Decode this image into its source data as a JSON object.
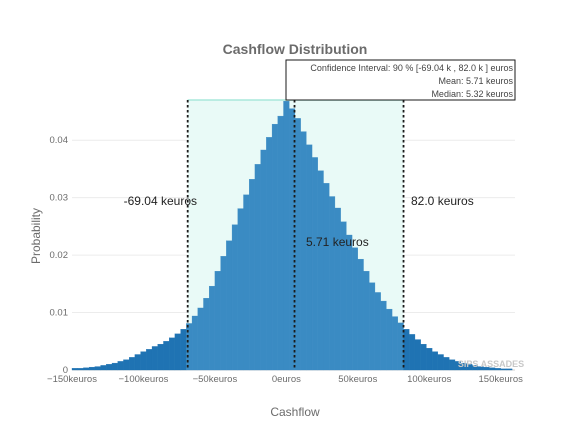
{
  "chart_data": {
    "type": "bar",
    "title": "Cashflow Distribution",
    "xlabel": "Cashflow",
    "ylabel": "Probability",
    "xlim": [
      -150,
      160
    ],
    "ylim": [
      0,
      0.047
    ],
    "x_ticks": [
      {
        "value": -150,
        "label": "−150keuros"
      },
      {
        "value": -100,
        "label": "−100keuros"
      },
      {
        "value": -50,
        "label": "−50keuros"
      },
      {
        "value": 0,
        "label": "0euros"
      },
      {
        "value": 50,
        "label": "50keuros"
      },
      {
        "value": 100,
        "label": "100keuros"
      },
      {
        "value": 150,
        "label": "150keuros"
      }
    ],
    "y_ticks": [
      {
        "value": 0,
        "label": "0"
      },
      {
        "value": 0.01,
        "label": "0.01"
      },
      {
        "value": 0.02,
        "label": "0.02"
      },
      {
        "value": 0.03,
        "label": "0.03"
      },
      {
        "value": 0.04,
        "label": "0.04"
      }
    ],
    "grid": true,
    "bin_width": 4,
    "bins": [
      {
        "x0": -150,
        "y": 0.0003
      },
      {
        "x0": -146,
        "y": 0.0003
      },
      {
        "x0": -142,
        "y": 0.0004
      },
      {
        "x0": -138,
        "y": 0.0005
      },
      {
        "x0": -134,
        "y": 0.0006
      },
      {
        "x0": -130,
        "y": 0.0008
      },
      {
        "x0": -126,
        "y": 0.001
      },
      {
        "x0": -122,
        "y": 0.0012
      },
      {
        "x0": -118,
        "y": 0.0015
      },
      {
        "x0": -114,
        "y": 0.0018
      },
      {
        "x0": -110,
        "y": 0.0022
      },
      {
        "x0": -106,
        "y": 0.0027
      },
      {
        "x0": -102,
        "y": 0.0032
      },
      {
        "x0": -98,
        "y": 0.0036
      },
      {
        "x0": -94,
        "y": 0.0041
      },
      {
        "x0": -90,
        "y": 0.0045
      },
      {
        "x0": -86,
        "y": 0.005
      },
      {
        "x0": -82,
        "y": 0.0056
      },
      {
        "x0": -78,
        "y": 0.0063
      },
      {
        "x0": -74,
        "y": 0.0071
      },
      {
        "x0": -70,
        "y": 0.0081
      },
      {
        "x0": -66,
        "y": 0.0094
      },
      {
        "x0": -62,
        "y": 0.0108
      },
      {
        "x0": -58,
        "y": 0.0125
      },
      {
        "x0": -54,
        "y": 0.0146
      },
      {
        "x0": -50,
        "y": 0.0172
      },
      {
        "x0": -46,
        "y": 0.0198
      },
      {
        "x0": -42,
        "y": 0.0225
      },
      {
        "x0": -38,
        "y": 0.0253
      },
      {
        "x0": -34,
        "y": 0.0281
      },
      {
        "x0": -30,
        "y": 0.0305
      },
      {
        "x0": -26,
        "y": 0.0332
      },
      {
        "x0": -22,
        "y": 0.0358
      },
      {
        "x0": -18,
        "y": 0.0383
      },
      {
        "x0": -14,
        "y": 0.0405
      },
      {
        "x0": -10,
        "y": 0.0428
      },
      {
        "x0": -6,
        "y": 0.0442
      },
      {
        "x0": -2,
        "y": 0.0468
      },
      {
        "x0": 2,
        "y": 0.0455
      },
      {
        "x0": 6,
        "y": 0.0438
      },
      {
        "x0": 10,
        "y": 0.0415
      },
      {
        "x0": 14,
        "y": 0.0392
      },
      {
        "x0": 18,
        "y": 0.037
      },
      {
        "x0": 22,
        "y": 0.0347
      },
      {
        "x0": 26,
        "y": 0.0325
      },
      {
        "x0": 30,
        "y": 0.0302
      },
      {
        "x0": 34,
        "y": 0.0282
      },
      {
        "x0": 38,
        "y": 0.0258
      },
      {
        "x0": 42,
        "y": 0.0235
      },
      {
        "x0": 46,
        "y": 0.0213
      },
      {
        "x0": 50,
        "y": 0.0193
      },
      {
        "x0": 54,
        "y": 0.0172
      },
      {
        "x0": 58,
        "y": 0.0152
      },
      {
        "x0": 62,
        "y": 0.0135
      },
      {
        "x0": 66,
        "y": 0.012
      },
      {
        "x0": 70,
        "y": 0.0106
      },
      {
        "x0": 74,
        "y": 0.0093
      },
      {
        "x0": 78,
        "y": 0.0082
      },
      {
        "x0": 82,
        "y": 0.0071
      },
      {
        "x0": 86,
        "y": 0.0062
      },
      {
        "x0": 90,
        "y": 0.0053
      },
      {
        "x0": 94,
        "y": 0.0045
      },
      {
        "x0": 98,
        "y": 0.0038
      },
      {
        "x0": 102,
        "y": 0.0032
      },
      {
        "x0": 106,
        "y": 0.0027
      },
      {
        "x0": 110,
        "y": 0.0022
      },
      {
        "x0": 114,
        "y": 0.0018
      },
      {
        "x0": 118,
        "y": 0.0015
      },
      {
        "x0": 122,
        "y": 0.0012
      },
      {
        "x0": 126,
        "y": 0.001
      },
      {
        "x0": 130,
        "y": 0.0008
      },
      {
        "x0": 134,
        "y": 0.0006
      },
      {
        "x0": 138,
        "y": 0.0005
      },
      {
        "x0": 142,
        "y": 0.0004
      },
      {
        "x0": 146,
        "y": 0.0003
      },
      {
        "x0": 150,
        "y": 0.0002
      },
      {
        "x0": 154,
        "y": 0.0002
      }
    ],
    "confidence_interval": {
      "low": -69.04,
      "high": 82.0,
      "level": 0.9
    },
    "mean": 5.71,
    "median": 5.32,
    "annotations": {
      "low_label": "-69.04 keuros",
      "high_label": "82.0 keuros",
      "mean_label": "5.71 keuros"
    },
    "info_box": {
      "line1": "Confidence Interval: 90 % [-69.04 k , 82.0 k ] euros",
      "line2": "Mean: 5.71 keuros",
      "line3": "Median: 5.32 keuros"
    },
    "colors": {
      "inside": "#3a8bc3",
      "outside": "#1f73b3",
      "band": "#e9faf7",
      "band_edge": "#a9e8dc",
      "grid": "#ececec",
      "cutoff": "#1a1a1a"
    }
  },
  "watermark": "SIPS ASSADES"
}
